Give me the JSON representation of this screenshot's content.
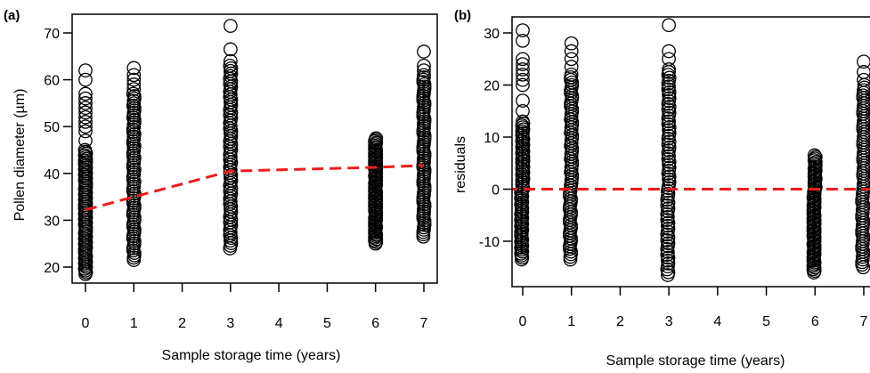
{
  "chart_data": [
    {
      "panel_label": "(a)",
      "type": "scatter",
      "xlabel": "Sample storage time (years)",
      "ylabel": "Pollen diameter (µm)",
      "xlim": [
        -0.35,
        7.25
      ],
      "ylim": [
        17,
        74
      ],
      "xticks": [
        0,
        1,
        2,
        3,
        4,
        5,
        6,
        7
      ],
      "yticks": [
        20,
        30,
        40,
        50,
        60,
        70
      ],
      "grid": false,
      "points_by_year": [
        {
          "x": 0,
          "range": [
            18.5,
            45
          ],
          "outliers": [
            47,
            49,
            50,
            51,
            52,
            53,
            54,
            55,
            56,
            57,
            60,
            62
          ]
        },
        {
          "x": 1,
          "range": [
            21.5,
            57
          ],
          "outliers": [
            58,
            59,
            60,
            61,
            62.5
          ]
        },
        {
          "x": 3,
          "range": [
            24,
            63
          ],
          "outliers": [
            64,
            66.5,
            71.5
          ]
        },
        {
          "x": 6,
          "range": [
            25,
            47.5
          ],
          "outliers": []
        },
        {
          "x": 7,
          "range": [
            26.5,
            61
          ],
          "outliers": [
            62,
            63,
            66
          ]
        }
      ],
      "fit_line": {
        "style": "dashed",
        "color": "#ee1c1c",
        "x": [
          0,
          1,
          3,
          6,
          7
        ],
        "y": [
          32.2,
          35,
          40.5,
          41.3,
          41.7
        ]
      }
    },
    {
      "panel_label": "(b)",
      "type": "scatter",
      "xlabel": "Sample storage time (years)",
      "ylabel": "residuals",
      "xlim": [
        -0.35,
        7.25
      ],
      "ylim": [
        -19.5,
        33
      ],
      "xticks": [
        0,
        1,
        2,
        3,
        4,
        5,
        6,
        7
      ],
      "yticks": [
        -10,
        0,
        10,
        20,
        30
      ],
      "grid": false,
      "points_by_year": [
        {
          "x": 0,
          "range": [
            -13.5,
            13
          ],
          "outliers": [
            15,
            17,
            20,
            21,
            22,
            23,
            24,
            25,
            28.5,
            30.5
          ]
        },
        {
          "x": 1,
          "range": [
            -13.5,
            22
          ],
          "outliers": [
            23.5,
            25,
            26.5,
            28
          ]
        },
        {
          "x": 3,
          "range": [
            -16.5,
            22.5
          ],
          "outliers": [
            23,
            25,
            26.5,
            31.5
          ]
        },
        {
          "x": 6,
          "range": [
            -16,
            6.5
          ],
          "outliers": []
        },
        {
          "x": 7,
          "range": [
            -15,
            20
          ],
          "outliers": [
            21,
            22.5,
            24.5
          ]
        }
      ],
      "fit_line": {
        "style": "dashed",
        "color": "#ee1c1c",
        "x": [
          -0.35,
          7.25
        ],
        "y": [
          0,
          0
        ]
      }
    }
  ]
}
